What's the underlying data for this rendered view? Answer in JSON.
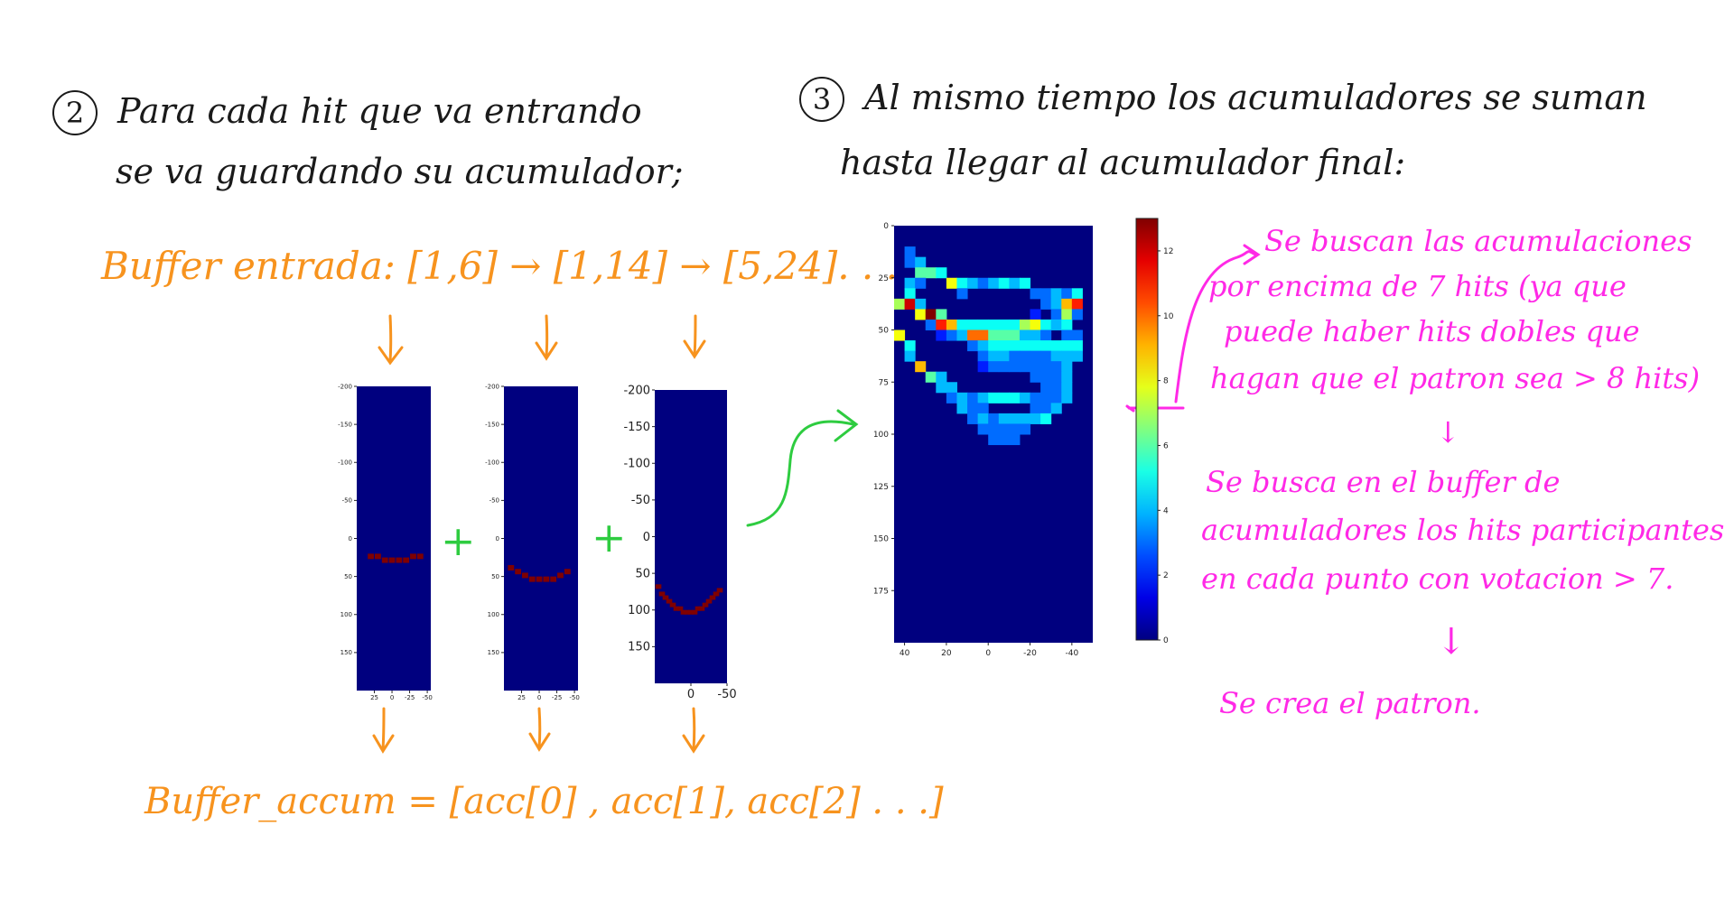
{
  "step2": {
    "number": "2",
    "line1": "Para cada hit que va entrando",
    "line2": "se va guardando su acumulador;"
  },
  "step3": {
    "number": "3",
    "line1": "Al mismo tiempo los acumuladores se suman",
    "line2": "hasta llegar al acumulador final:"
  },
  "buffer_input": "Buffer entrada: [1,6] → [1,14] → [5,24]. . .",
  "buffer_accum": "Buffer_accum = [acc[0] , acc[1], acc[2] . . .]",
  "plus": "+",
  "notes": {
    "n1": [
      "Se buscan las acumulaciones",
      "por encima de 7 hits (ya que",
      "puede haber hits dobles que",
      "hagan que el patron sea > 8 hits)"
    ],
    "arrow1": "↓",
    "n2": [
      "Se busca en el buffer de",
      "acumuladores los hits participantes",
      "en cada punto con votacion > 7."
    ],
    "arrow2": "↓",
    "n3": "Se crea el patron."
  },
  "colors": {
    "black_ink": "#1a1a1a",
    "orange_ink": "#f7931e",
    "pink_ink": "#ff29e6",
    "green_ink": "#2ecc40",
    "plot_bg": "#00007f",
    "hit": "#7f0000"
  },
  "chart_data": [
    {
      "type": "heatmap",
      "title": "",
      "yticks": [
        "-200",
        "-150",
        "-100",
        "-50",
        "0",
        "50",
        "100",
        "150"
      ],
      "xticks": [
        "25",
        "0",
        "-25",
        "-50"
      ],
      "ylim": [
        -200,
        200
      ],
      "xlim": [
        50,
        -55
      ],
      "cells": [
        [
          30,
          20
        ],
        [
          20,
          20
        ],
        [
          10,
          25
        ],
        [
          0,
          25
        ],
        [
          -10,
          25
        ],
        [
          -20,
          25
        ],
        [
          -30,
          20
        ],
        [
          -40,
          20
        ]
      ]
    },
    {
      "type": "heatmap",
      "title": "",
      "yticks": [
        "-200",
        "-150",
        "-100",
        "-50",
        "0",
        "50",
        "100",
        "150"
      ],
      "xticks": [
        "25",
        "0",
        "-25",
        "-50"
      ],
      "ylim": [
        -200,
        200
      ],
      "xlim": [
        50,
        -55
      ],
      "cells": [
        [
          40,
          35
        ],
        [
          30,
          40
        ],
        [
          20,
          45
        ],
        [
          10,
          50
        ],
        [
          0,
          50
        ],
        [
          -10,
          50
        ],
        [
          -20,
          50
        ],
        [
          -30,
          45
        ],
        [
          -40,
          40
        ]
      ]
    },
    {
      "type": "heatmap",
      "title": "",
      "yticks": [
        "-200",
        "-150",
        "-100",
        "-50",
        "0",
        "50",
        "100",
        "150"
      ],
      "xticks": [
        "0",
        "-50"
      ],
      "ylim": [
        -200,
        200
      ],
      "xlim": [
        50,
        -50
      ],
      "cells": [
        [
          45,
          65
        ],
        [
          40,
          75
        ],
        [
          35,
          80
        ],
        [
          30,
          85
        ],
        [
          25,
          90
        ],
        [
          20,
          95
        ],
        [
          15,
          95
        ],
        [
          10,
          100
        ],
        [
          5,
          100
        ],
        [
          0,
          100
        ],
        [
          -5,
          100
        ],
        [
          -10,
          95
        ],
        [
          -15,
          95
        ],
        [
          -20,
          90
        ],
        [
          -25,
          85
        ],
        [
          -30,
          80
        ],
        [
          -35,
          75
        ],
        [
          -40,
          70
        ]
      ]
    },
    {
      "type": "heatmap",
      "title": "",
      "yticks": [
        "0",
        "25",
        "50",
        "75",
        "100",
        "125",
        "150",
        "175"
      ],
      "xticks": [
        "40",
        "20",
        "0",
        "-20",
        "-40"
      ],
      "colorbar_ticks": [
        "0",
        "2",
        "4",
        "6",
        "8",
        "10",
        "12"
      ],
      "colorbar_range": [
        0,
        13
      ],
      "threshold": 7,
      "cols": [
        "45",
        "40",
        "35",
        "30",
        "25",
        "20",
        "15",
        "10",
        "5",
        "0",
        "-5",
        "-10",
        "-15",
        "-20",
        "-25",
        "-30",
        "-35",
        "-40",
        "-45"
      ],
      "rows": [
        "0000000000000000000",
        "0300000000000000000",
        "0330000000000000000",
        "0053350000000000000",
        "0335744440000000000",
        "0000086655553555330",
        "0074443346444454340",
        "0800000000000000000",
        "0008550000000000000",
        "0012101111555558590",
        "0003334444553353330",
        "0000033333333333330",
        "0000003333333333330",
        "0000000333333333330",
        "0000000033333333300",
        "0000000000000000000",
        "0000000000000000000",
        "0000000000000000000",
        "0000000000000000000"
      ],
      "overlay": [
        {
          "r": 0,
          "c": 0,
          "v": 0
        },
        {
          "r": 1,
          "c": 1,
          "v": 3
        },
        {
          "r": 2,
          "c": 1,
          "v": 3
        },
        {
          "r": 2,
          "c": 2,
          "v": 4
        },
        {
          "r": 3,
          "c": 2,
          "v": 6
        },
        {
          "r": 3,
          "c": 3,
          "v": 6
        },
        {
          "r": 3,
          "c": 4,
          "v": 5
        },
        {
          "r": 4,
          "c": 1,
          "v": 4
        },
        {
          "r": 4,
          "c": 2,
          "v": 3
        },
        {
          "r": 4,
          "c": 5,
          "v": 8
        },
        {
          "r": 4,
          "c": 6,
          "v": 5
        },
        {
          "r": 4,
          "c": 7,
          "v": 4
        },
        {
          "r": 4,
          "c": 8,
          "v": 3
        },
        {
          "r": 4,
          "c": 9,
          "v": 4
        },
        {
          "r": 4,
          "c": 10,
          "v": 5
        },
        {
          "r": 4,
          "c": 11,
          "v": 4
        },
        {
          "r": 4,
          "c": 12,
          "v": 5
        },
        {
          "r": 5,
          "c": 1,
          "v": 5
        },
        {
          "r": 5,
          "c": 6,
          "v": 3
        },
        {
          "r": 5,
          "c": 13,
          "v": 3
        },
        {
          "r": 5,
          "c": 14,
          "v": 3
        },
        {
          "r": 5,
          "c": 15,
          "v": 4
        },
        {
          "r": 5,
          "c": 16,
          "v": 3
        },
        {
          "r": 5,
          "c": 17,
          "v": 5
        },
        {
          "r": 6,
          "c": 0,
          "v": 7
        },
        {
          "r": 6,
          "c": 1,
          "v": 12
        },
        {
          "r": 6,
          "c": 2,
          "v": 4
        },
        {
          "r": 6,
          "c": 14,
          "v": 3
        },
        {
          "r": 6,
          "c": 15,
          "v": 4
        },
        {
          "r": 6,
          "c": 16,
          "v": 9
        },
        {
          "r": 6,
          "c": 17,
          "v": 11
        },
        {
          "r": 7,
          "c": 2,
          "v": 8
        },
        {
          "r": 7,
          "c": 3,
          "v": 13
        },
        {
          "r": 7,
          "c": 4,
          "v": 6
        },
        {
          "r": 7,
          "c": 13,
          "v": 2
        },
        {
          "r": 7,
          "c": 15,
          "v": 3
        },
        {
          "r": 7,
          "c": 16,
          "v": 7
        },
        {
          "r": 7,
          "c": 17,
          "v": 3
        },
        {
          "r": 8,
          "c": 3,
          "v": 3
        },
        {
          "r": 8,
          "c": 4,
          "v": 11
        },
        {
          "r": 8,
          "c": 5,
          "v": 9
        },
        {
          "r": 8,
          "c": 6,
          "v": 5
        },
        {
          "r": 8,
          "c": 7,
          "v": 5
        },
        {
          "r": 8,
          "c": 8,
          "v": 5
        },
        {
          "r": 8,
          "c": 9,
          "v": 5
        },
        {
          "r": 8,
          "c": 10,
          "v": 5
        },
        {
          "r": 8,
          "c": 11,
          "v": 5
        },
        {
          "r": 8,
          "c": 12,
          "v": 7
        },
        {
          "r": 8,
          "c": 13,
          "v": 8
        },
        {
          "r": 8,
          "c": 14,
          "v": 5
        },
        {
          "r": 8,
          "c": 15,
          "v": 4
        },
        {
          "r": 8,
          "c": 16,
          "v": 5
        },
        {
          "r": 9,
          "c": 0,
          "v": 8
        },
        {
          "r": 9,
          "c": 4,
          "v": 2
        },
        {
          "r": 9,
          "c": 5,
          "v": 3
        },
        {
          "r": 9,
          "c": 6,
          "v": 4
        },
        {
          "r": 9,
          "c": 7,
          "v": 10
        },
        {
          "r": 9,
          "c": 8,
          "v": 10
        },
        {
          "r": 9,
          "c": 9,
          "v": 6
        },
        {
          "r": 9,
          "c": 10,
          "v": 6
        },
        {
          "r": 9,
          "c": 11,
          "v": 6
        },
        {
          "r": 9,
          "c": 12,
          "v": 4
        },
        {
          "r": 9,
          "c": 13,
          "v": 4
        },
        {
          "r": 9,
          "c": 14,
          "v": 3
        },
        {
          "r": 9,
          "c": 16,
          "v": 3
        },
        {
          "r": 9,
          "c": 17,
          "v": 3
        },
        {
          "r": 10,
          "c": 1,
          "v": 5
        },
        {
          "r": 10,
          "c": 7,
          "v": 3
        },
        {
          "r": 10,
          "c": 8,
          "v": 4
        },
        {
          "r": 10,
          "c": 9,
          "v": 5
        },
        {
          "r": 10,
          "c": 10,
          "v": 5
        },
        {
          "r": 10,
          "c": 11,
          "v": 5
        },
        {
          "r": 10,
          "c": 12,
          "v": 5
        },
        {
          "r": 10,
          "c": 13,
          "v": 5
        },
        {
          "r": 10,
          "c": 14,
          "v": 5
        },
        {
          "r": 10,
          "c": 15,
          "v": 5
        },
        {
          "r": 10,
          "c": 16,
          "v": 5
        },
        {
          "r": 10,
          "c": 17,
          "v": 5
        },
        {
          "r": 11,
          "c": 1,
          "v": 4
        },
        {
          "r": 11,
          "c": 8,
          "v": 3
        },
        {
          "r": 11,
          "c": 9,
          "v": 4
        },
        {
          "r": 11,
          "c": 10,
          "v": 4
        },
        {
          "r": 11,
          "c": 11,
          "v": 3
        },
        {
          "r": 11,
          "c": 12,
          "v": 3
        },
        {
          "r": 11,
          "c": 13,
          "v": 3
        },
        {
          "r": 11,
          "c": 14,
          "v": 3
        },
        {
          "r": 11,
          "c": 15,
          "v": 4
        },
        {
          "r": 11,
          "c": 16,
          "v": 4
        },
        {
          "r": 11,
          "c": 17,
          "v": 4
        },
        {
          "r": 12,
          "c": 2,
          "v": 9
        },
        {
          "r": 12,
          "c": 8,
          "v": 2
        },
        {
          "r": 12,
          "c": 9,
          "v": 3
        },
        {
          "r": 12,
          "c": 10,
          "v": 3
        },
        {
          "r": 12,
          "c": 11,
          "v": 3
        },
        {
          "r": 12,
          "c": 12,
          "v": 3
        },
        {
          "r": 12,
          "c": 13,
          "v": 3
        },
        {
          "r": 12,
          "c": 14,
          "v": 3
        },
        {
          "r": 12,
          "c": 15,
          "v": 3
        },
        {
          "r": 12,
          "c": 16,
          "v": 4
        },
        {
          "r": 13,
          "c": 3,
          "v": 6
        },
        {
          "r": 13,
          "c": 4,
          "v": 4
        },
        {
          "r": 13,
          "c": 13,
          "v": 3
        },
        {
          "r": 13,
          "c": 14,
          "v": 3
        },
        {
          "r": 13,
          "c": 15,
          "v": 3
        },
        {
          "r": 13,
          "c": 16,
          "v": 4
        },
        {
          "r": 14,
          "c": 4,
          "v": 4
        },
        {
          "r": 14,
          "c": 5,
          "v": 4
        },
        {
          "r": 14,
          "c": 14,
          "v": 3
        },
        {
          "r": 14,
          "c": 15,
          "v": 3
        },
        {
          "r": 14,
          "c": 16,
          "v": 4
        },
        {
          "r": 15,
          "c": 5,
          "v": 3
        },
        {
          "r": 15,
          "c": 6,
          "v": 4
        },
        {
          "r": 15,
          "c": 7,
          "v": 3
        },
        {
          "r": 15,
          "c": 8,
          "v": 4
        },
        {
          "r": 15,
          "c": 9,
          "v": 5
        },
        {
          "r": 15,
          "c": 10,
          "v": 5
        },
        {
          "r": 15,
          "c": 11,
          "v": 5
        },
        {
          "r": 15,
          "c": 12,
          "v": 4
        },
        {
          "r": 15,
          "c": 13,
          "v": 3
        },
        {
          "r": 15,
          "c": 14,
          "v": 3
        },
        {
          "r": 15,
          "c": 15,
          "v": 3
        },
        {
          "r": 15,
          "c": 16,
          "v": 4
        },
        {
          "r": 16,
          "c": 6,
          "v": 4
        },
        {
          "r": 16,
          "c": 7,
          "v": 3
        },
        {
          "r": 16,
          "c": 8,
          "v": 3
        },
        {
          "r": 16,
          "c": 13,
          "v": 3
        },
        {
          "r": 16,
          "c": 14,
          "v": 3
        },
        {
          "r": 16,
          "c": 15,
          "v": 4
        },
        {
          "r": 17,
          "c": 7,
          "v": 3
        },
        {
          "r": 17,
          "c": 8,
          "v": 4
        },
        {
          "r": 17,
          "c": 9,
          "v": 3
        },
        {
          "r": 17,
          "c": 10,
          "v": 4
        },
        {
          "r": 17,
          "c": 11,
          "v": 4
        },
        {
          "r": 17,
          "c": 12,
          "v": 4
        },
        {
          "r": 17,
          "c": 13,
          "v": 4
        },
        {
          "r": 17,
          "c": 14,
          "v": 5
        },
        {
          "r": 18,
          "c": 8,
          "v": 3
        },
        {
          "r": 18,
          "c": 9,
          "v": 3
        },
        {
          "r": 18,
          "c": 10,
          "v": 3
        },
        {
          "r": 18,
          "c": 11,
          "v": 3
        },
        {
          "r": 18,
          "c": 12,
          "v": 3
        },
        {
          "r": 19,
          "c": 9,
          "v": 3
        },
        {
          "r": 19,
          "c": 10,
          "v": 3
        },
        {
          "r": 19,
          "c": 11,
          "v": 3
        }
      ]
    }
  ]
}
